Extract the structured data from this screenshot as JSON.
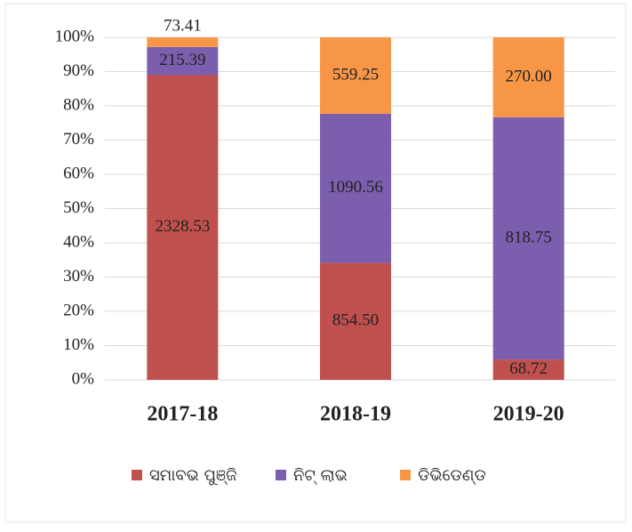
{
  "chart_data": {
    "type": "bar",
    "stacking": "percent",
    "categories": [
      "2017-18",
      "2018-19",
      "2019-20"
    ],
    "series": [
      {
        "name": "ସମାବଭ ପୁଞ୍ଜି",
        "color": "#c0504d",
        "values": [
          2328.53,
          854.5,
          68.72
        ],
        "value_labels": [
          "2328.53",
          "854.50",
          "68.72"
        ]
      },
      {
        "name": "ନିଟ୍ ଲାଭ",
        "color": "#7b5ead",
        "values": [
          215.39,
          1090.56,
          818.75
        ],
        "value_labels": [
          "215.39",
          "1090.56",
          "818.75"
        ]
      },
      {
        "name": "ଡିଭିଡେଣ୍ଡ",
        "color": "#f79646",
        "values": [
          73.41,
          559.25,
          270.0
        ],
        "value_labels": [
          "73.41",
          "559.25",
          "270.00"
        ]
      }
    ],
    "ylim": [
      0,
      100
    ],
    "yticks": [
      {
        "value": 0,
        "label": "0%"
      },
      {
        "value": 10,
        "label": "10%"
      },
      {
        "value": 20,
        "label": "20%"
      },
      {
        "value": 30,
        "label": "30%"
      },
      {
        "value": 40,
        "label": "40%"
      },
      {
        "value": 50,
        "label": "50%"
      },
      {
        "value": 60,
        "label": "60%"
      },
      {
        "value": 70,
        "label": "70%"
      },
      {
        "value": 80,
        "label": "80%"
      },
      {
        "value": 90,
        "label": "90%"
      },
      {
        "value": 100,
        "label": "100%"
      }
    ],
    "grid": true,
    "legend": "bottom"
  }
}
